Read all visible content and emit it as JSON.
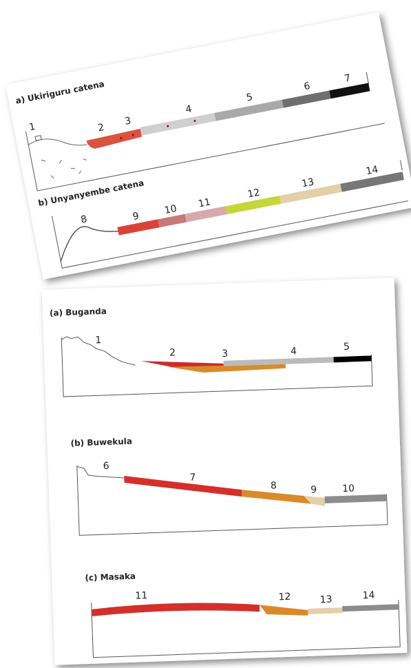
{
  "panels": [
    {
      "title": "a) Ukiriguru catena",
      "labels": [
        "1",
        "2",
        "3",
        "4",
        "5",
        "6",
        "7"
      ]
    },
    {
      "title": "b) Unyanyembe catena",
      "labels": [
        "8",
        "9",
        "10",
        "11",
        "12",
        "13",
        "14"
      ]
    },
    {
      "title": "(a) Buganda",
      "labels": [
        "1",
        "2",
        "3",
        "4",
        "5"
      ]
    },
    {
      "title": "(b) Buwekula",
      "labels": [
        "6",
        "7",
        "8",
        "9",
        "10"
      ]
    },
    {
      "title": "(c) Masaka",
      "labels": [
        "11",
        "12",
        "13",
        "14"
      ]
    }
  ]
}
